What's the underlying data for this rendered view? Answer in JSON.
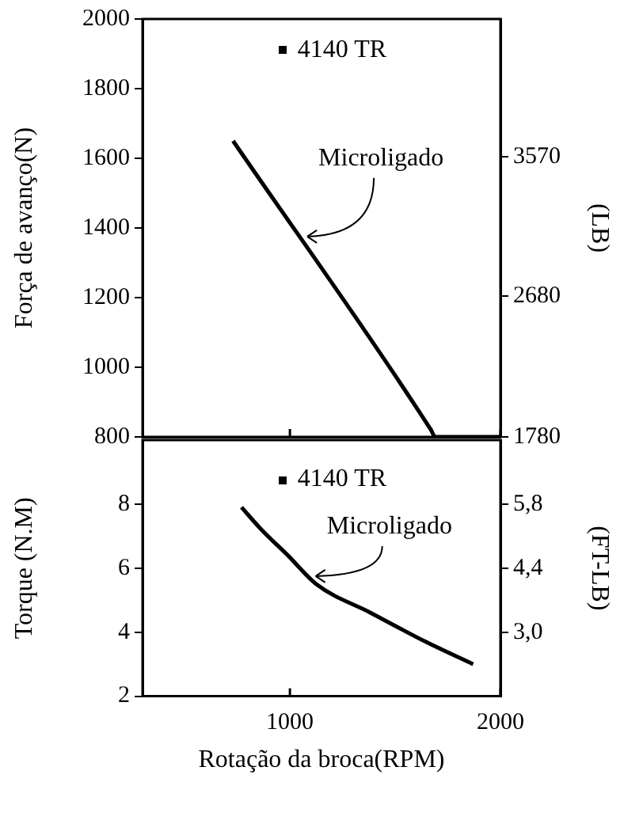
{
  "chart_data": [
    {
      "type": "line",
      "ylabel": "Força de avanço(N)",
      "y2label": "(LB)",
      "xlim": [
        300,
        2000
      ],
      "xticks": [
        {
          "value": 1000,
          "label": null
        },
        {
          "value": 2000,
          "label": null
        }
      ],
      "ylim": [
        800,
        2000
      ],
      "yticks": [
        800,
        1000,
        1200,
        1400,
        1600,
        1800,
        2000
      ],
      "y2lim": [
        1780,
        4450
      ],
      "y2ticks": [
        1780,
        2680,
        3570
      ],
      "tick_labels": "y",
      "series": [
        {
          "color": "#000000",
          "x": [
            730,
            1670,
            1690,
            2000
          ],
          "values": [
            1650,
            820,
            800,
            800
          ]
        }
      ],
      "annotations": [
        "4140 TR",
        {
          "text": "Microligado",
          "x": 1060,
          "y": 1380
        }
      ]
    },
    {
      "type": "line",
      "xlabel": "Rotação da broca(RPM)",
      "ylabel": "Torque (N.M)",
      "y2label": "(FT-LB)",
      "xlim": [
        300,
        2000
      ],
      "xticks": [
        1000,
        2000
      ],
      "ylim": [
        2,
        10
      ],
      "yticks": [
        2,
        4,
        6,
        8
      ],
      "y2lim": [
        1.6,
        7.2
      ],
      "y2ticks": [
        {
          "value": 3.0,
          "label": "3,0"
        },
        {
          "value": 4.4,
          "label": "4,4"
        },
        {
          "value": 5.8,
          "label": "5,8"
        }
      ],
      "series": [
        {
          "color": "#000000",
          "x": [
            770,
            865,
            990,
            1125,
            1385,
            1645,
            1870
          ],
          "values": [
            7.9,
            7.2,
            6.4,
            5.5,
            4.6,
            3.7,
            3.0
          ]
        }
      ],
      "annotations": [
        "4140 TR",
        {
          "text": "Microligado",
          "x": 1100,
          "y": 5.8
        }
      ]
    }
  ]
}
